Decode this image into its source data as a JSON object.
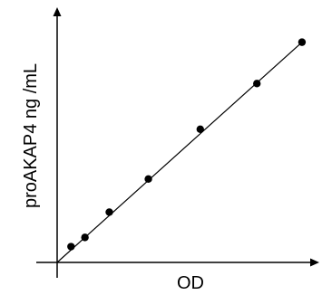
{
  "chart_data": {
    "type": "scatter",
    "xlabel": "OD",
    "ylabel": "proAKAP4 ng /mL",
    "xlim": [
      0,
      10
    ],
    "ylim": [
      0,
      10
    ],
    "grid": false,
    "legend": "none",
    "points": [
      {
        "x": 0.53,
        "y": 0.62
      },
      {
        "x": 1.06,
        "y": 0.98
      },
      {
        "x": 1.99,
        "y": 1.97
      },
      {
        "x": 3.48,
        "y": 3.27
      },
      {
        "x": 5.46,
        "y": 5.22
      },
      {
        "x": 7.62,
        "y": 7.01
      },
      {
        "x": 9.34,
        "y": 8.63
      }
    ],
    "fit_line": {
      "x": [
        0,
        9.34
      ],
      "y": [
        0,
        8.63
      ]
    }
  },
  "colors": {
    "axis": "#000000",
    "points": "#000000",
    "line": "#000000",
    "background": "#ffffff"
  }
}
